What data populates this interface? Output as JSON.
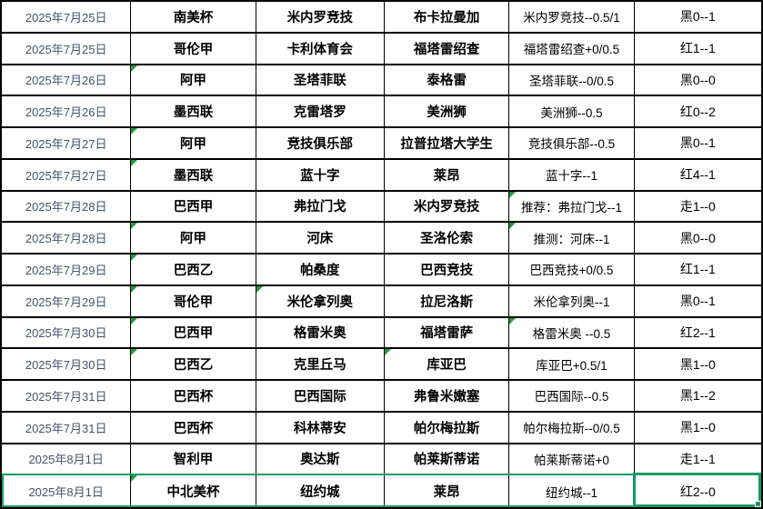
{
  "colors": {
    "grid_border": "#000000",
    "date_text": "#44546A",
    "body_text": "#000000",
    "selection_green": "#169B62",
    "flag_triangle_green": "#1F9C3D",
    "background": "#FFFFFF"
  },
  "table": {
    "column_keys": [
      "date",
      "league",
      "home",
      "away",
      "tip",
      "result"
    ],
    "rows": [
      {
        "date": "2025年7月25日",
        "league": "南美杯",
        "home": "米内罗竞技",
        "away": "布卡拉曼加",
        "tip": "米内罗竞技--0.5/1",
        "result": "黑0--1",
        "markers": []
      },
      {
        "date": "2025年7月25日",
        "league": "哥伦甲",
        "home": "卡利体育会",
        "away": "福塔雷绍查",
        "tip": "福塔雷绍查+0/0.5",
        "result": "红1--1",
        "markers": []
      },
      {
        "date": "2025年7月26日",
        "league": "阿甲",
        "home": "圣塔菲联",
        "away": "泰格雷",
        "tip": "圣塔菲联--0/0.5",
        "result": "黑0--0",
        "markers": [
          "league"
        ]
      },
      {
        "date": "2025年7月26日",
        "league": "墨西联",
        "home": "克雷塔罗",
        "away": "美洲狮",
        "tip": "美洲狮--0.5",
        "result": "红0--2",
        "markers": []
      },
      {
        "date": "2025年7月27日",
        "league": "阿甲",
        "home": "竞技俱乐部",
        "away": "拉普拉塔大学生",
        "tip": "竞技俱乐部--0.5",
        "result": "黑0--1",
        "markers": [
          "league"
        ]
      },
      {
        "date": "2025年7月27日",
        "league": "墨西联",
        "home": "蓝十字",
        "away": "莱昂",
        "tip": "蓝十字--1",
        "result": "红4--1",
        "markers": [
          "league"
        ]
      },
      {
        "date": "2025年7月28日",
        "league": "巴西甲",
        "home": "弗拉门戈",
        "away": "米内罗竞技",
        "tip": "推荐：弗拉门戈--1",
        "result": "走1--0",
        "markers": [
          "tip"
        ]
      },
      {
        "date": "2025年7月28日",
        "league": "阿甲",
        "home": "河床",
        "away": "圣洛伦索",
        "tip": "推测：河床--1",
        "result": "黑0--0",
        "markers": [
          "league",
          "tip"
        ]
      },
      {
        "date": "2025年7月29日",
        "league": "巴西乙",
        "home": "帕桑度",
        "away": "巴西竞技",
        "tip": "巴西竞技+0/0.5",
        "result": "红1--1",
        "markers": [
          "league"
        ]
      },
      {
        "date": "2025年7月29日",
        "league": "哥伦甲",
        "home": "米伦拿列奥",
        "away": "拉尼洛斯",
        "tip": "米伦拿列奥--1",
        "result": "黑0--1",
        "markers": [
          "league",
          "home"
        ]
      },
      {
        "date": "2025年7月30日",
        "league": "巴西甲",
        "home": "格雷米奥",
        "away": "福塔雷萨",
        "tip": "格雷米奥 --0.5",
        "result": "红2--1",
        "markers": [
          "league",
          "tip"
        ]
      },
      {
        "date": "2025年7月30日",
        "league": "巴西乙",
        "home": "克里丘马",
        "away": "库亚巴",
        "tip": "库亚巴+0.5/1",
        "result": "黑1--0",
        "markers": [
          "league",
          "away"
        ]
      },
      {
        "date": "2025年7月31日",
        "league": "巴西杯",
        "home": "巴西国际",
        "away": "弗鲁米嫩塞",
        "tip": "巴西国际--0.5",
        "result": "黑1--2",
        "markers": []
      },
      {
        "date": "2025年7月31日",
        "league": "巴西杯",
        "home": "科林蒂安",
        "away": "帕尔梅拉斯",
        "tip": "帕尔梅拉斯--0/0.5",
        "result": "黑1--0",
        "markers": []
      },
      {
        "date": "2025年8月1日",
        "league": "智利甲",
        "home": "奥达斯",
        "away": "帕莱斯蒂诺",
        "tip": "帕莱斯蒂诺+0",
        "result": "走1--1",
        "markers": []
      },
      {
        "date": "2025年8月1日",
        "league": "中北美杯",
        "home": "纽约城",
        "away": "莱昂",
        "tip": "纽约城--1",
        "result": "红2--0",
        "markers": [
          "league"
        ],
        "selected": true
      }
    ]
  },
  "selection": {
    "selected_row_index": 15,
    "active_cell_column": "result"
  }
}
